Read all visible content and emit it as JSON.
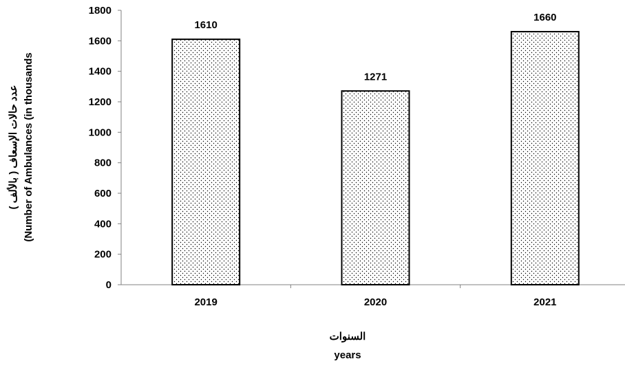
{
  "chart_data": {
    "type": "bar",
    "title": "",
    "categories": [
      "2019",
      "2020",
      "2021"
    ],
    "values": [
      1610,
      1271,
      1660
    ],
    "data_labels": [
      "1610",
      "1271",
      "1660"
    ],
    "xlabel_lines": [
      "السنوات",
      "years"
    ],
    "ylabel_lines": [
      "عدد حالات الإسعاف ( بالألف )",
      "(Number of Ambulances (in thousands"
    ],
    "ylim": [
      0,
      1800
    ],
    "yticks": [
      0,
      200,
      400,
      600,
      800,
      1000,
      1200,
      1400,
      1600,
      1800
    ],
    "grid": false,
    "legend": "none",
    "bar_fill": "dotted",
    "colors": {
      "bar_fill": "#ffffff",
      "bar_dots": "#000000",
      "bar_stroke": "#000000",
      "axis": "#808080",
      "text": "#000000"
    }
  }
}
